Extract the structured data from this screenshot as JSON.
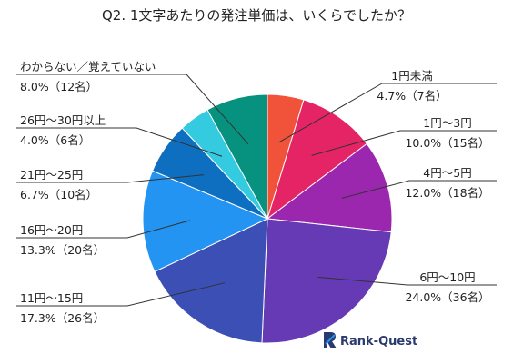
{
  "chart_data": {
    "type": "pie",
    "title": "Q2. 1文字あたりの発注単価は、いくらでしたか？",
    "slices": [
      {
        "label": "1円未満",
        "value_text": "4.7%（7名）",
        "percent": 4.7,
        "count": 7,
        "color": "#f0533a"
      },
      {
        "label": "1円～3円",
        "value_text": "10.0%（15名）",
        "percent": 10.0,
        "count": 15,
        "color": "#e52465"
      },
      {
        "label": "4円～5円",
        "value_text": "12.0%（18名）",
        "percent": 12.0,
        "count": 18,
        "color": "#9b27ae"
      },
      {
        "label": "6円～10円",
        "value_text": "24.0%（36名）",
        "percent": 24.0,
        "count": 36,
        "color": "#6639b5"
      },
      {
        "label": "11円～15円",
        "value_text": "17.3%（26名）",
        "percent": 17.3,
        "count": 26,
        "color": "#3b4fb5"
      },
      {
        "label": "16円～20円",
        "value_text": "13.3%（20名）",
        "percent": 13.3,
        "count": 20,
        "color": "#2394f1"
      },
      {
        "label": "21円～25円",
        "value_text": "6.7%（10名）",
        "percent": 6.7,
        "count": 10,
        "color": "#0e6fc0"
      },
      {
        "label": "26円～30円以上",
        "value_text": "4.0%（6名）",
        "percent": 4.0,
        "count": 6,
        "color": "#34cbe0"
      },
      {
        "label": "わからない／覚えていない",
        "value_text": "8.0%（12名）",
        "percent": 8.0,
        "count": 12,
        "color": "#07917f"
      }
    ]
  },
  "brand": {
    "name": "Rank-Quest",
    "color": "#2a3a6e",
    "icon": "rank-quest-logo-icon"
  }
}
